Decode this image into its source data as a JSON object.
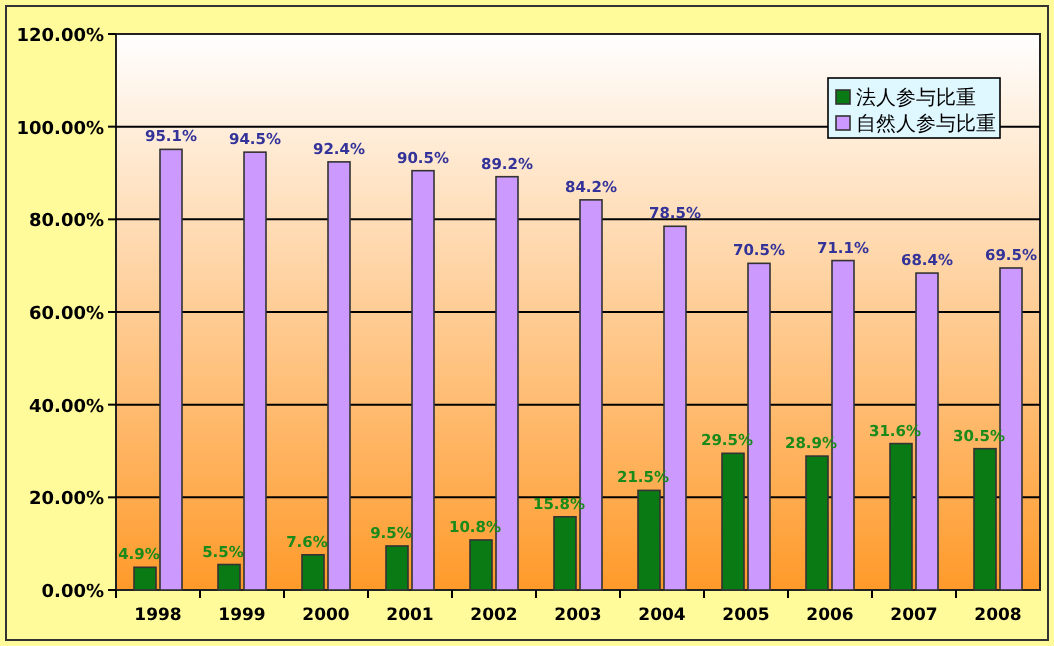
{
  "chart_data": {
    "type": "bar",
    "categories": [
      "1998",
      "1999",
      "2000",
      "2001",
      "2002",
      "2003",
      "2004",
      "2005",
      "2006",
      "2007",
      "2008"
    ],
    "series": [
      {
        "name": "法人参与比重",
        "color": "#0a7a14",
        "values": [
          4.9,
          5.5,
          7.6,
          9.5,
          10.8,
          15.8,
          21.5,
          29.5,
          28.9,
          31.6,
          30.5
        ],
        "value_labels": [
          "4.9%",
          "5.5%",
          "7.6%",
          "9.5%",
          "10.8%",
          "15.8%",
          "21.5%",
          "29.5%",
          "28.9%",
          "31.6%",
          "30.5%"
        ]
      },
      {
        "name": "自然人参与比重",
        "color": "#cc99ff",
        "values": [
          95.1,
          94.5,
          92.4,
          90.5,
          89.2,
          84.2,
          78.5,
          70.5,
          71.1,
          68.4,
          69.5
        ],
        "value_labels": [
          "95.1%",
          "94.5%",
          "92.4%",
          "90.5%",
          "89.2%",
          "84.2%",
          "78.5%",
          "70.5%",
          "71.1%",
          "68.4%",
          "69.5%"
        ]
      }
    ],
    "ylim": [
      0,
      120
    ],
    "yticks": [
      {
        "value": 0,
        "label": "0.00%"
      },
      {
        "value": 20,
        "label": "20.00%"
      },
      {
        "value": 40,
        "label": "40.00%"
      },
      {
        "value": 60,
        "label": "60.00%"
      },
      {
        "value": 80,
        "label": "80.00%"
      },
      {
        "value": 100,
        "label": "100.00%"
      },
      {
        "value": 120,
        "label": "120.00%"
      }
    ],
    "grid": "y",
    "legend": "top right"
  }
}
